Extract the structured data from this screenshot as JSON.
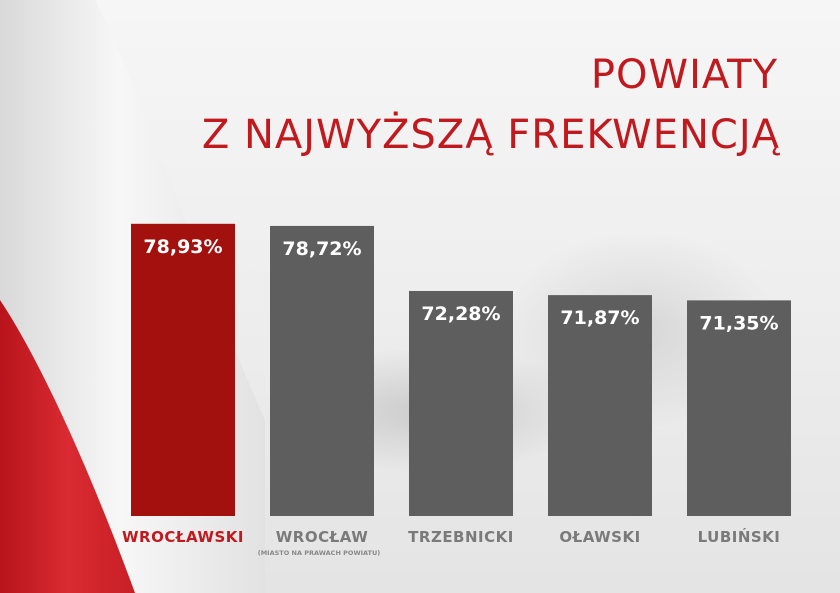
{
  "chart_data": {
    "type": "bar",
    "title": "POWIATY",
    "subtitle": "Z NAJWYŻSZĄ FREKWENCJĄ",
    "categories": [
      "WROCŁAWSKI",
      "WROCŁAW",
      "TRZEBNICKI",
      "OŁAWSKI",
      "LUBIŃSKI"
    ],
    "category_note": "(MIASTO NA PRAWACH POWIATU)",
    "values": [
      78.93,
      78.72,
      72.28,
      71.87,
      71.35
    ],
    "value_labels": [
      "78,93%",
      "78,72%",
      "72,28%",
      "71,87%",
      "71,35%"
    ],
    "highlight_index": 0,
    "colors": {
      "highlight": "#a3110f",
      "default": "#5e5e5e",
      "title": "#c0191e",
      "label_highlight": "#c0191e",
      "label_default": "#7a7a7a",
      "value_text": "#ffffff"
    },
    "grid": false,
    "legend": "none"
  }
}
